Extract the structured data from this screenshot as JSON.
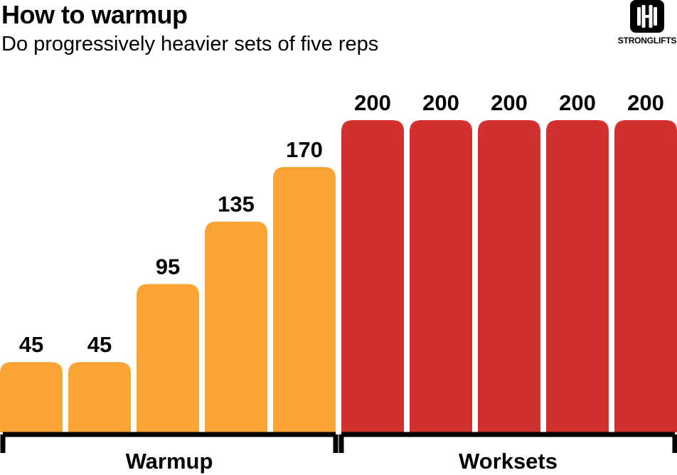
{
  "chart_data": {
    "type": "bar",
    "title": "How to warmup",
    "subtitle": "Do progressively heavier sets of five reps",
    "categories": [
      "",
      "",
      "",
      "",
      "",
      "",
      "",
      "",
      "",
      ""
    ],
    "values": [
      45,
      45,
      95,
      135,
      170,
      200,
      200,
      200,
      200,
      200
    ],
    "groups": [
      {
        "name": "Warmup",
        "from": 0,
        "to": 4,
        "color": "#FBA436"
      },
      {
        "name": "Worksets",
        "from": 5,
        "to": 9,
        "color": "#D22F2F"
      }
    ],
    "ylim": [
      0,
      200
    ],
    "grid": false,
    "legend": "none"
  },
  "logo": {
    "text": "STRONGLIFTS",
    "icon": "barbell-icon"
  }
}
